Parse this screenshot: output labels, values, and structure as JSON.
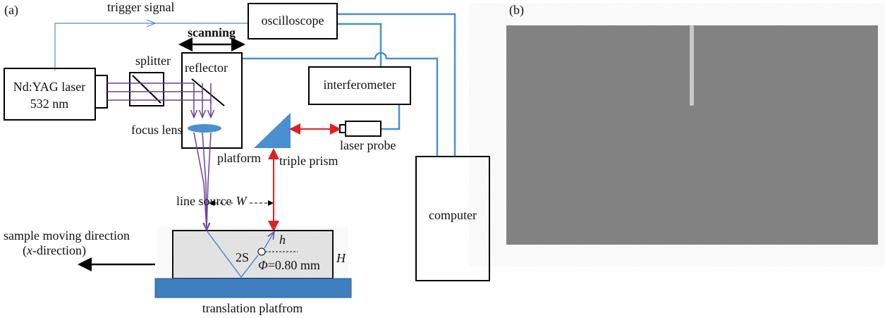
{
  "panel_a": {
    "label": "(a)",
    "components": {
      "trigger": "trigger signal",
      "oscilloscope": "oscilloscope",
      "scanning": "scanning",
      "splitter": "splitter",
      "reflector": "reflector",
      "laser_line1": "Nd:YAG laser",
      "laser_line2": "532 nm",
      "interferometer": "interferometer",
      "focus_lens": "focus lens",
      "laser_probe": "laser probe",
      "platform": "platform",
      "triple_prism": "triple prism",
      "line_source": "line source",
      "W": "W",
      "computer": "computer",
      "h": "h",
      "two_s": "2S",
      "phi_symbol": "Φ",
      "phi_value": "=0.80 mm",
      "H": "H",
      "translation_platform": "translation platfrom"
    },
    "direction": {
      "line1": "sample moving direction",
      "line2_parts": [
        "(",
        "x",
        "-direction)"
      ]
    }
  },
  "panel_b": {
    "label": "(b)"
  }
}
